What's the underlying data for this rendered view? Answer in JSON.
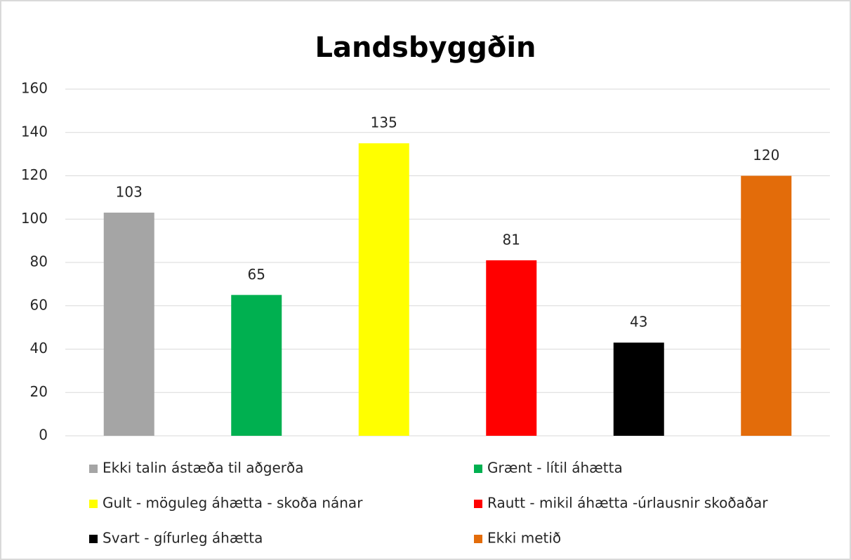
{
  "chart_data": {
    "type": "bar",
    "title": "Landsbyggðin",
    "categories": [
      "Ekki talin ástæða til aðgerða",
      "Grænt - lítil áhætta",
      "Gult - möguleg áhætta - skoða nánar",
      "Rautt - mikil áhætta -úrlausnir skoðaðar",
      "Svart - gífurleg áhætta",
      "Ekki metið"
    ],
    "values": [
      103,
      65,
      135,
      81,
      43,
      120
    ],
    "colors": [
      "#a5a5a5",
      "#00b050",
      "#ffff00",
      "#ff0000",
      "#000000",
      "#e36c0a"
    ],
    "ylim": [
      0,
      160
    ],
    "yticks": [
      0,
      20,
      40,
      60,
      80,
      100,
      120,
      140,
      160
    ],
    "grid": true,
    "legend": "bottom"
  }
}
